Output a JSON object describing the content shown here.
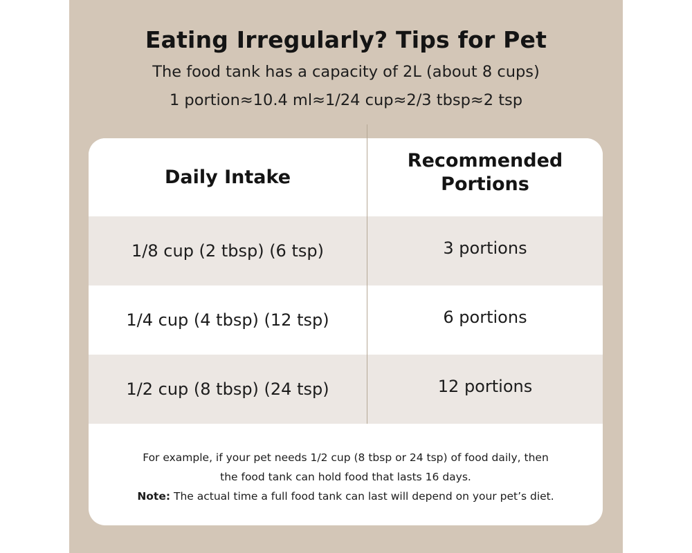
{
  "header": {
    "title": "Eating Irregularly? Tips for Pet",
    "capacity_line": "The food tank has a capacity of 2L (about 8 cups)",
    "portion_line": "1 portion≈10.4 ml≈1/24 cup≈2/3 tbsp≈2 tsp"
  },
  "table": {
    "columns": [
      "Daily Intake",
      "Recommended Portions"
    ],
    "rows": [
      {
        "intake": "1/8 cup (2 tbsp) (6 tsp)",
        "portions": "3 portions"
      },
      {
        "intake": "1/4 cup (4 tbsp) (12 tsp)",
        "portions": "6 portions"
      },
      {
        "intake": "1/2 cup (8 tbsp) (24 tsp)",
        "portions": "12 portions"
      }
    ]
  },
  "footer": {
    "example_line1": "For example, if your pet needs 1/2 cup (8 tbsp or 24 tsp) of food daily, then",
    "example_line2": "the food tank can hold food that lasts 16 days.",
    "note_label": "Note:",
    "note_text": " The actual time a full food tank can last will depend on your pet’s diet."
  },
  "colors": {
    "panel_background": "#d3c6b7",
    "card_background": "#ffffff",
    "striped_row": "#ece7e3",
    "text": "#1c1c1c"
  }
}
